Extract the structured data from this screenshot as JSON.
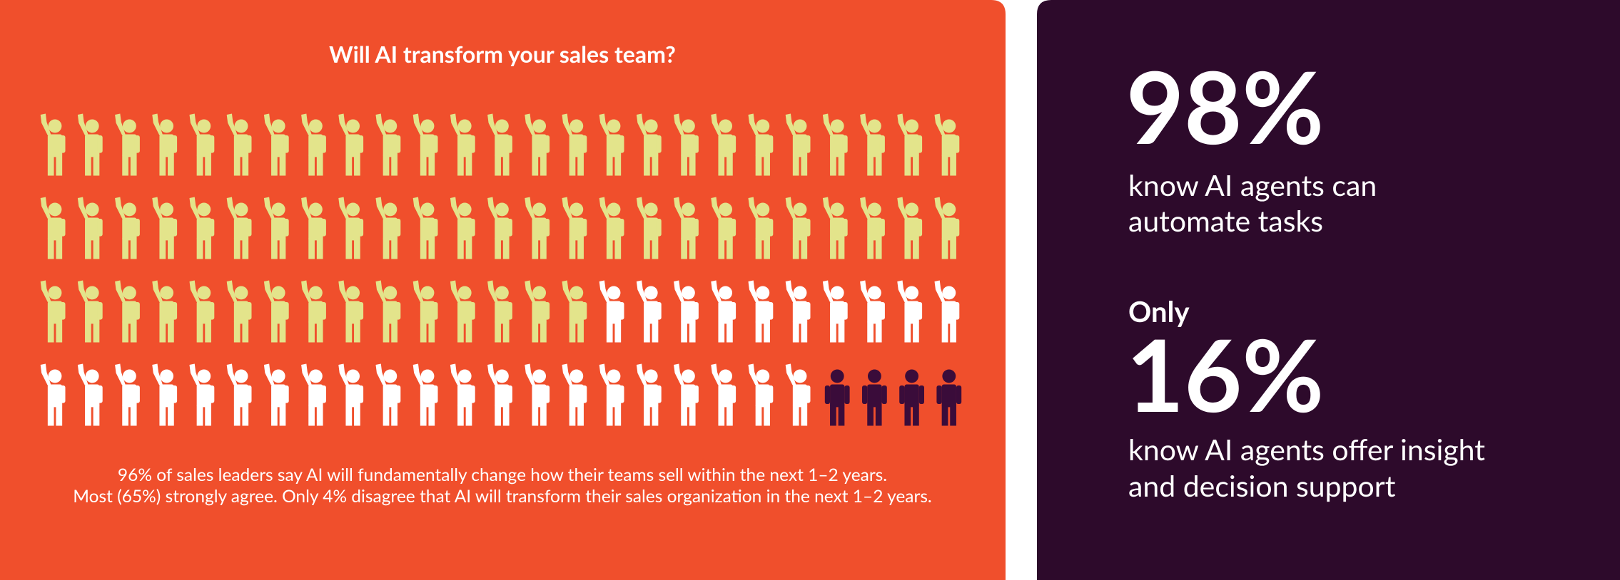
{
  "chart_data": {
    "type": "pictogram",
    "title": "Will AI transform your sales team?",
    "values": [
      65,
      31,
      4
    ],
    "colors": [
      "#e3e48b",
      "#ffffff",
      "#3a0c3a"
    ],
    "notes": [
      "96% of sales leaders say AI will fundamentally change how their teams sell within the next 1–2 years.",
      "Most (65%) strongly agree. Only 4% disagree that AI will transform their sales organization in the next 1–2 years."
    ]
  },
  "stats": [
    {
      "figure": "98%",
      "lines": [
        "know AI agents can",
        "automate tasks"
      ]
    },
    {
      "lead": "Only",
      "figure": "16%",
      "lines": [
        "know AI agents offer insight",
        "and decision support"
      ]
    }
  ]
}
